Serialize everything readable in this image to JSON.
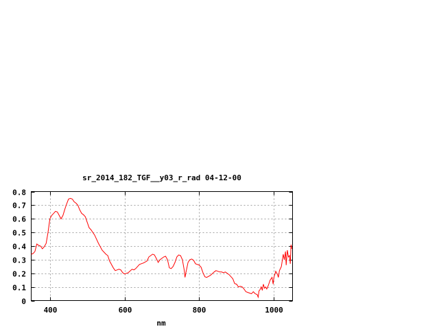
{
  "chart_data": {
    "type": "line",
    "title": "sr_2014_182_TGF__y03_r_rad 04-12-00",
    "xlabel": "nm",
    "ylabel": "",
    "xlim": [
      350,
      1050
    ],
    "ylim": [
      0,
      0.8
    ],
    "grid": true,
    "xticks": [
      400,
      600,
      800,
      1000
    ],
    "xtick_labels": [
      "400",
      "600",
      "800",
      "1000"
    ],
    "yticks": [
      0,
      0.1,
      0.2,
      0.3,
      0.4,
      0.5,
      0.6,
      0.7,
      0.8
    ],
    "ytick_labels": [
      "0",
      "0.1",
      "0.2",
      "0.3",
      "0.4",
      "0.5",
      "0.6",
      "0.7",
      "0.8"
    ],
    "series": [
      {
        "name": "sr_2014_182_TGF__y03_r_rad",
        "color": "#ff0000",
        "x": [
          350,
          355,
          360,
          365,
          370,
          375,
          380,
          385,
          390,
          395,
          400,
          405,
          410,
          415,
          420,
          425,
          430,
          435,
          440,
          445,
          450,
          455,
          460,
          465,
          470,
          475,
          480,
          485,
          490,
          495,
          500,
          505,
          510,
          520,
          530,
          540,
          550,
          555,
          560,
          570,
          575,
          580,
          585,
          590,
          595,
          600,
          610,
          620,
          625,
          630,
          640,
          650,
          660,
          665,
          675,
          680,
          685,
          690,
          695,
          705,
          710,
          715,
          720,
          725,
          730,
          735,
          740,
          745,
          750,
          755,
          760,
          762,
          765,
          770,
          775,
          780,
          785,
          790,
          800,
          805,
          810,
          815,
          820,
          830,
          840,
          845,
          850,
          855,
          860,
          865,
          870,
          880,
          890,
          895,
          900,
          905,
          910,
          915,
          920,
          925,
          935,
          940,
          945,
          950,
          955,
          958,
          960,
          963,
          966,
          969,
          972,
          975,
          978,
          981,
          985,
          990,
          995,
          998,
          1000,
          1005,
          1010,
          1012,
          1015,
          1020,
          1025,
          1028,
          1031,
          1033,
          1036,
          1039,
          1042,
          1044,
          1046,
          1048
        ],
        "y": [
          0.34,
          0.345,
          0.36,
          0.415,
          0.405,
          0.4,
          0.38,
          0.395,
          0.42,
          0.5,
          0.6,
          0.625,
          0.64,
          0.655,
          0.65,
          0.625,
          0.6,
          0.625,
          0.67,
          0.71,
          0.745,
          0.75,
          0.745,
          0.725,
          0.715,
          0.7,
          0.665,
          0.64,
          0.63,
          0.615,
          0.575,
          0.535,
          0.52,
          0.48,
          0.42,
          0.37,
          0.34,
          0.33,
          0.29,
          0.24,
          0.22,
          0.225,
          0.23,
          0.225,
          0.205,
          0.195,
          0.205,
          0.23,
          0.225,
          0.235,
          0.265,
          0.275,
          0.29,
          0.32,
          0.34,
          0.335,
          0.31,
          0.28,
          0.3,
          0.32,
          0.325,
          0.3,
          0.24,
          0.235,
          0.25,
          0.28,
          0.32,
          0.335,
          0.33,
          0.3,
          0.22,
          0.17,
          0.215,
          0.28,
          0.3,
          0.305,
          0.295,
          0.27,
          0.26,
          0.245,
          0.205,
          0.175,
          0.17,
          0.185,
          0.21,
          0.22,
          0.215,
          0.21,
          0.21,
          0.205,
          0.21,
          0.19,
          0.16,
          0.125,
          0.12,
          0.1,
          0.105,
          0.1,
          0.085,
          0.065,
          0.055,
          0.05,
          0.065,
          0.05,
          0.045,
          0.025,
          0.07,
          0.08,
          0.1,
          0.075,
          0.12,
          0.09,
          0.1,
          0.085,
          0.11,
          0.15,
          0.17,
          0.12,
          0.17,
          0.215,
          0.19,
          0.17,
          0.22,
          0.25,
          0.34,
          0.3,
          0.36,
          0.26,
          0.37,
          0.32,
          0.33,
          0.27,
          0.41,
          0.38
        ]
      }
    ]
  }
}
